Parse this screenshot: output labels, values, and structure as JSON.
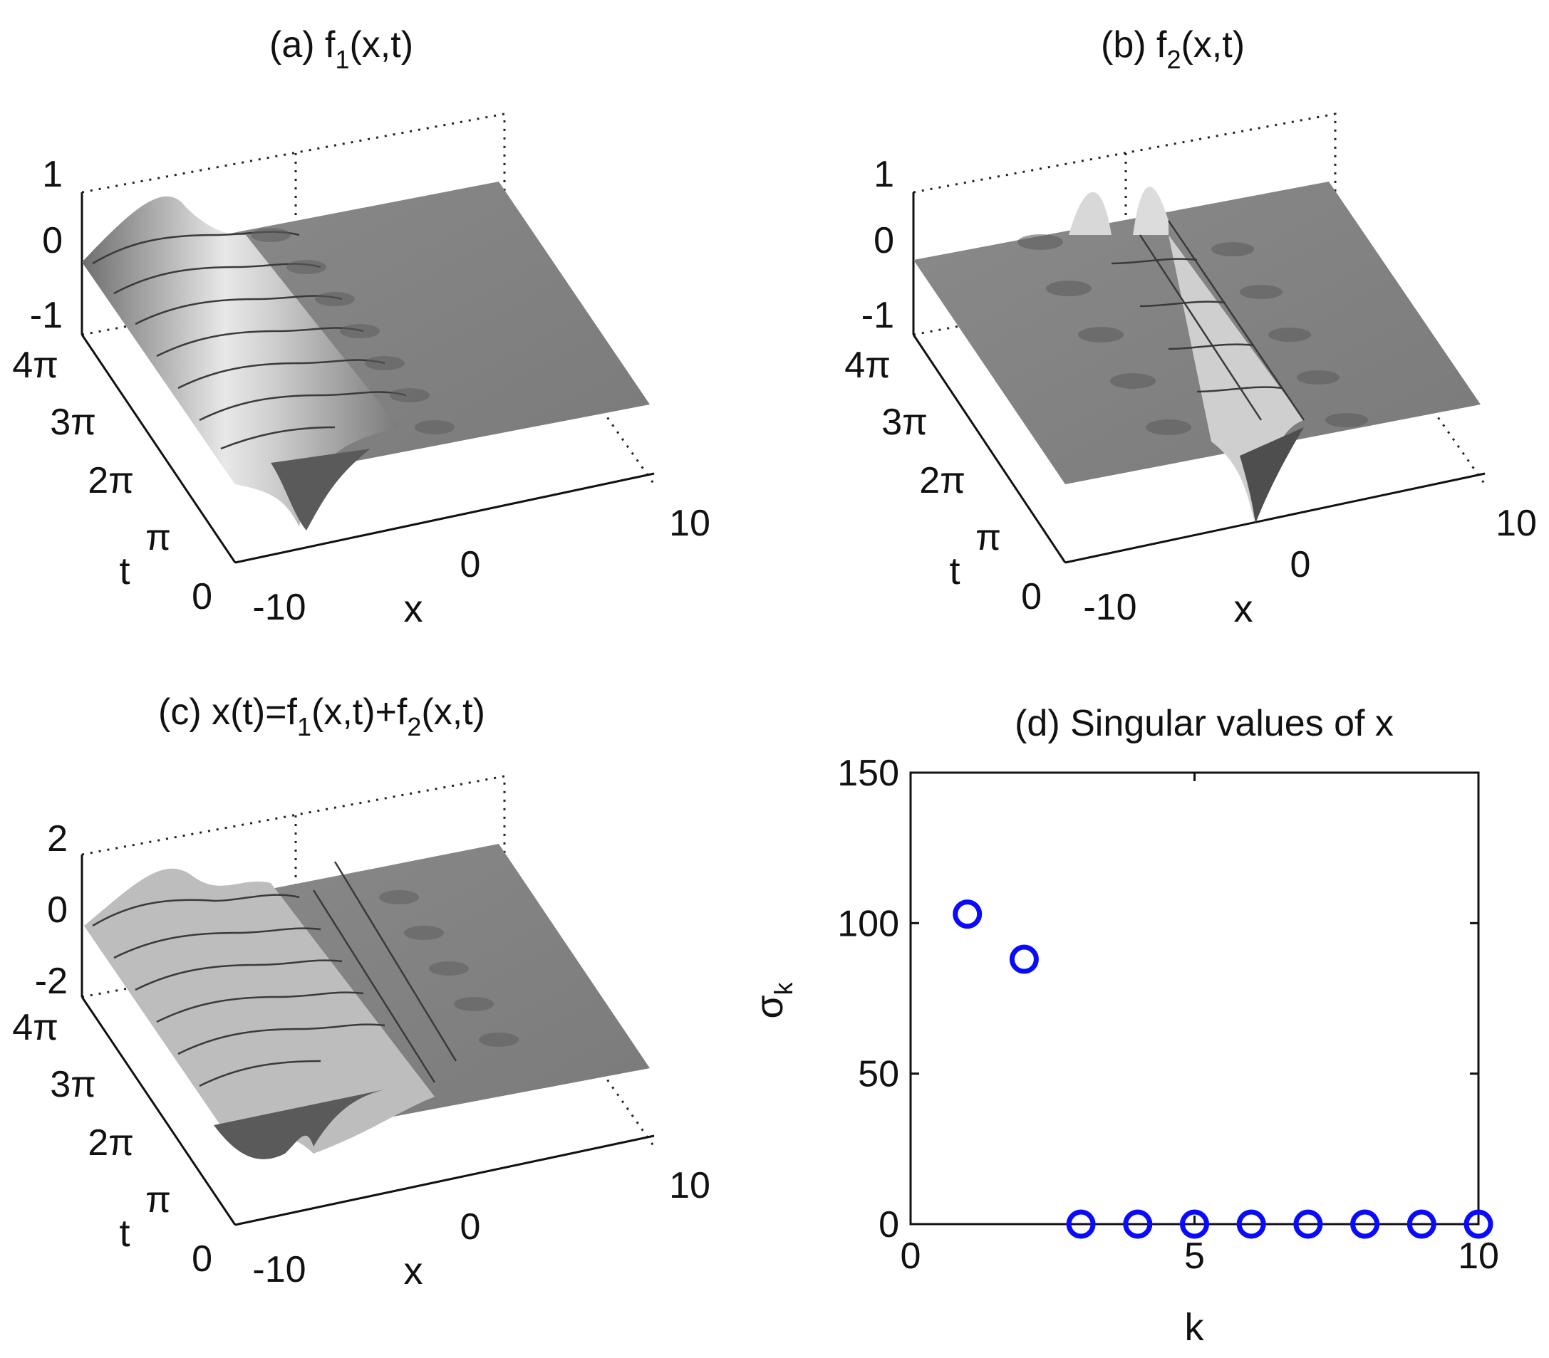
{
  "figure": {
    "panel_a": {
      "title": "(a) f",
      "title_sub": "1",
      "title_tail": "(x,t)",
      "z_ticks": [
        "1",
        "0",
        "-1"
      ],
      "t_ticks": [
        "4π",
        "3π",
        "2π",
        "π",
        "0"
      ],
      "x_ticks": [
        "-10",
        "0",
        "10"
      ],
      "xlabel": "x",
      "tlabel": "t"
    },
    "panel_b": {
      "title": "(b) f",
      "title_sub": "2",
      "title_tail": "(x,t)",
      "z_ticks": [
        "1",
        "0",
        "-1"
      ],
      "t_ticks": [
        "4π",
        "3π",
        "2π",
        "π",
        "0"
      ],
      "x_ticks": [
        "-10",
        "0",
        "10"
      ],
      "xlabel": "x",
      "tlabel": "t"
    },
    "panel_c": {
      "title": "(c) x(t)=f",
      "title_sub1": "1",
      "title_mid": "(x,t)+f",
      "title_sub2": "2",
      "title_tail": "(x,t)",
      "z_ticks": [
        "2",
        "0",
        "-2"
      ],
      "t_ticks": [
        "4π",
        "3π",
        "2π",
        "π",
        "0"
      ],
      "x_ticks": [
        "-10",
        "0",
        "10"
      ],
      "xlabel": "x",
      "tlabel": "t"
    }
  },
  "chart_data": [
    {
      "type": "surface",
      "title": "(a) f1(x,t)",
      "x_range": [
        -10,
        10
      ],
      "t_range": [
        0,
        12.566
      ],
      "z_range": [
        -1,
        1
      ],
      "x_tick_labels": [
        "-10",
        "0",
        "10"
      ],
      "t_tick_labels": [
        "0",
        "π",
        "2π",
        "3π",
        "4π"
      ],
      "z_tick_labels": [
        "-1",
        "0",
        "1"
      ],
      "xlabel": "x",
      "ylabel": "t"
    },
    {
      "type": "surface",
      "title": "(b) f2(x,t)",
      "x_range": [
        -10,
        10
      ],
      "t_range": [
        0,
        12.566
      ],
      "z_range": [
        -1,
        1
      ],
      "x_tick_labels": [
        "-10",
        "0",
        "10"
      ],
      "t_tick_labels": [
        "0",
        "π",
        "2π",
        "3π",
        "4π"
      ],
      "z_tick_labels": [
        "-1",
        "0",
        "1"
      ],
      "xlabel": "x",
      "ylabel": "t"
    },
    {
      "type": "surface",
      "title": "(c) x(t)=f1(x,t)+f2(x,t)",
      "x_range": [
        -10,
        10
      ],
      "t_range": [
        0,
        12.566
      ],
      "z_range": [
        -2,
        2
      ],
      "x_tick_labels": [
        "-10",
        "0",
        "10"
      ],
      "t_tick_labels": [
        "0",
        "π",
        "2π",
        "3π",
        "4π"
      ],
      "z_tick_labels": [
        "-2",
        "0",
        "2"
      ],
      "xlabel": "x",
      "ylabel": "t"
    },
    {
      "type": "scatter",
      "title": "(d) Singular values of x",
      "xlabel": "k",
      "ylabel": "σ",
      "ylabel_sub": "k",
      "x": [
        1,
        2,
        3,
        4,
        5,
        6,
        7,
        8,
        9,
        10
      ],
      "y": [
        103,
        88,
        0,
        0,
        0,
        0,
        0,
        0,
        0,
        0
      ],
      "xlim": [
        0,
        10
      ],
      "ylim": [
        0,
        150
      ],
      "x_ticks": [
        "0",
        "5",
        "10"
      ],
      "y_ticks": [
        "0",
        "50",
        "100",
        "150"
      ],
      "marker": "circle",
      "color": "#0a0aff",
      "grid": false
    }
  ]
}
